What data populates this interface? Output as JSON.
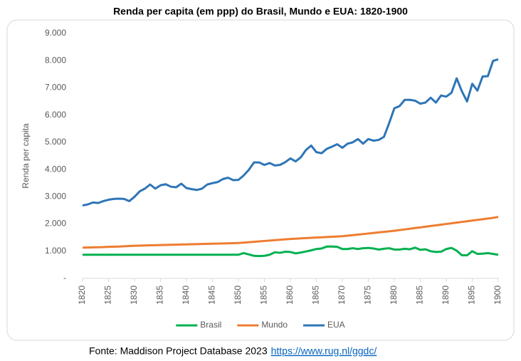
{
  "chart_data": {
    "type": "line",
    "title": "Renda per capita (em ppp) do Brasil, Mundo e EUA: 1820-1900",
    "ylabel": "Renda per capita",
    "source": "Fonte: Maddison Project Database 2023",
    "source_url": "https://www.rug.nl/ggdc/",
    "x": [
      1820,
      1821,
      1822,
      1823,
      1824,
      1825,
      1826,
      1827,
      1828,
      1829,
      1830,
      1831,
      1832,
      1833,
      1834,
      1835,
      1836,
      1837,
      1838,
      1839,
      1840,
      1841,
      1842,
      1843,
      1844,
      1845,
      1846,
      1847,
      1848,
      1849,
      1850,
      1851,
      1852,
      1853,
      1854,
      1855,
      1856,
      1857,
      1858,
      1859,
      1860,
      1861,
      1862,
      1863,
      1864,
      1865,
      1866,
      1867,
      1868,
      1869,
      1870,
      1871,
      1872,
      1873,
      1874,
      1875,
      1876,
      1877,
      1878,
      1879,
      1880,
      1881,
      1882,
      1883,
      1884,
      1885,
      1886,
      1887,
      1888,
      1889,
      1890,
      1891,
      1892,
      1893,
      1894,
      1895,
      1896,
      1897,
      1898,
      1899,
      1900
    ],
    "xlim": [
      1820,
      1900
    ],
    "xticks": [
      1820,
      1825,
      1830,
      1835,
      1840,
      1845,
      1850,
      1855,
      1860,
      1865,
      1870,
      1875,
      1880,
      1885,
      1890,
      1895,
      1900
    ],
    "ylim": [
      0,
      9000
    ],
    "yticks": [
      {
        "value": 0,
        "label": "-"
      },
      {
        "value": 1000,
        "label": "1.000"
      },
      {
        "value": 2000,
        "label": "2.000"
      },
      {
        "value": 3000,
        "label": "3.000"
      },
      {
        "value": 4000,
        "label": "4.000"
      },
      {
        "value": 5000,
        "label": "5.000"
      },
      {
        "value": 6000,
        "label": "6.000"
      },
      {
        "value": 7000,
        "label": "7.000"
      },
      {
        "value": 8000,
        "label": "8.000"
      },
      {
        "value": 9000,
        "label": "9.000"
      }
    ],
    "grid": false,
    "legend": "bottom",
    "series": [
      {
        "name": "Brasil",
        "color": "#00b050",
        "values": [
          870,
          870,
          870,
          870,
          870,
          870,
          870,
          870,
          870,
          870,
          870,
          870,
          870,
          870,
          870,
          870,
          870,
          870,
          870,
          870,
          870,
          870,
          870,
          870,
          870,
          870,
          870,
          870,
          870,
          870,
          870,
          930,
          880,
          830,
          820,
          830,
          870,
          960,
          940,
          980,
          970,
          920,
          950,
          990,
          1030,
          1080,
          1100,
          1170,
          1170,
          1160,
          1080,
          1080,
          1110,
          1080,
          1110,
          1120,
          1100,
          1060,
          1090,
          1110,
          1060,
          1060,
          1090,
          1070,
          1130,
          1050,
          1070,
          1000,
          970,
          980,
          1080,
          1120,
          1020,
          850,
          850,
          1000,
          900,
          910,
          930,
          900,
          870
        ]
      },
      {
        "name": "Mundo",
        "color": "#ed7d31",
        "values": [
          1130,
          1135,
          1140,
          1145,
          1150,
          1160,
          1165,
          1170,
          1180,
          1190,
          1200,
          1205,
          1210,
          1215,
          1220,
          1225,
          1230,
          1235,
          1240,
          1245,
          1250,
          1255,
          1260,
          1265,
          1270,
          1275,
          1280,
          1285,
          1290,
          1295,
          1300,
          1315,
          1330,
          1345,
          1360,
          1375,
          1390,
          1405,
          1420,
          1435,
          1450,
          1460,
          1470,
          1480,
          1490,
          1500,
          1510,
          1520,
          1530,
          1540,
          1550,
          1570,
          1590,
          1610,
          1630,
          1650,
          1670,
          1690,
          1710,
          1730,
          1750,
          1775,
          1800,
          1825,
          1850,
          1875,
          1900,
          1925,
          1950,
          1975,
          2000,
          2025,
          2050,
          2075,
          2100,
          2125,
          2150,
          2175,
          2200,
          2225,
          2260
        ]
      },
      {
        "name": "EUA",
        "color": "#2e75b6",
        "values": [
          2680,
          2720,
          2790,
          2770,
          2840,
          2890,
          2920,
          2930,
          2920,
          2840,
          3000,
          3200,
          3300,
          3450,
          3300,
          3420,
          3460,
          3370,
          3350,
          3480,
          3320,
          3280,
          3250,
          3300,
          3450,
          3500,
          3540,
          3650,
          3700,
          3610,
          3620,
          3780,
          3990,
          4260,
          4260,
          4170,
          4240,
          4150,
          4170,
          4270,
          4410,
          4300,
          4450,
          4720,
          4880,
          4640,
          4600,
          4760,
          4840,
          4930,
          4800,
          4950,
          5000,
          5120,
          4950,
          5120,
          5060,
          5090,
          5200,
          5700,
          6250,
          6330,
          6560,
          6560,
          6530,
          6420,
          6460,
          6640,
          6460,
          6720,
          6680,
          6820,
          7350,
          6880,
          6500,
          7150,
          6900,
          7420,
          7430,
          7990,
          8050
        ]
      }
    ]
  }
}
